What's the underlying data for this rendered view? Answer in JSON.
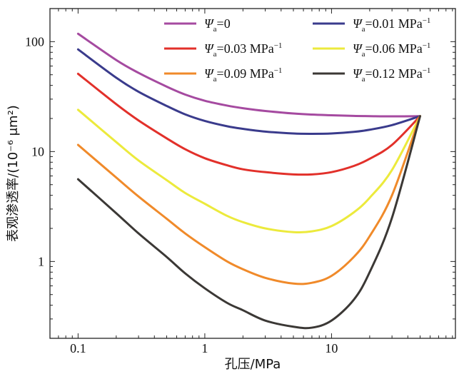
{
  "chart_data": {
    "type": "line",
    "xscale": "log",
    "yscale": "log",
    "xlim": [
      0.06,
      95
    ],
    "ylim": [
      0.2,
      200
    ],
    "xlabel": "孔压/MPa",
    "ylabel": "表观渗透率/(10⁻⁶ μm²)",
    "x_ticks": [
      {
        "value": 0.1,
        "label": "0.1"
      },
      {
        "value": 1,
        "label": "1"
      },
      {
        "value": 10,
        "label": "10"
      }
    ],
    "y_ticks": [
      {
        "value": 1,
        "label": "1"
      },
      {
        "value": 10,
        "label": "10"
      },
      {
        "value": 100,
        "label": "100"
      }
    ],
    "legend_position": "top-right",
    "series": [
      {
        "name": "Ψa=0",
        "symbol": "Ψ",
        "sub": "a",
        "value": "=0",
        "unit": "",
        "unit_sup": "",
        "color": "#a54aa0",
        "x": [
          0.1,
          0.2,
          0.3,
          0.5,
          0.7,
          1,
          1.5,
          2,
          3,
          5,
          7,
          10,
          15,
          20,
          30,
          50
        ],
        "y": [
          118,
          68,
          52,
          39,
          33,
          29,
          26.2,
          24.8,
          23.4,
          22.2,
          21.7,
          21.4,
          21.1,
          21.0,
          20.9,
          21
        ]
      },
      {
        "name": "Ψa=0.01 MPa⁻¹",
        "symbol": "Ψ",
        "sub": "a",
        "value": "=0.01 ",
        "unit": "MPa",
        "unit_sup": "−1",
        "color": "#3a3b8c",
        "x": [
          0.1,
          0.2,
          0.3,
          0.5,
          0.7,
          1,
          1.5,
          2,
          3,
          5,
          7,
          10,
          15,
          20,
          30,
          50
        ],
        "y": [
          85,
          47,
          35,
          26,
          21.8,
          19,
          17,
          16.1,
          15.2,
          14.6,
          14.5,
          14.6,
          15.1,
          15.8,
          17.4,
          21
        ]
      },
      {
        "name": "Ψa=0.03 MPa⁻¹",
        "symbol": "Ψ",
        "sub": "a",
        "value": "=0.03 ",
        "unit": "MPa",
        "unit_sup": "−1",
        "color": "#e2302a",
        "x": [
          0.1,
          0.2,
          0.3,
          0.5,
          0.7,
          1,
          1.5,
          2,
          3,
          5,
          7,
          10,
          15,
          20,
          30,
          50
        ],
        "y": [
          51,
          27,
          19.2,
          13.2,
          10.5,
          8.7,
          7.5,
          6.9,
          6.5,
          6.2,
          6.2,
          6.5,
          7.4,
          8.6,
          11.5,
          21
        ]
      },
      {
        "name": "Ψa=0.06 MPa⁻¹",
        "symbol": "Ψ",
        "sub": "a",
        "value": "=0.06 ",
        "unit": "MPa",
        "unit_sup": "−1",
        "color": "#ecea3c",
        "x": [
          0.1,
          0.2,
          0.3,
          0.5,
          0.7,
          1,
          1.5,
          2,
          3,
          5,
          7,
          10,
          15,
          20,
          30,
          50
        ],
        "y": [
          24,
          12.2,
          8.3,
          5.5,
          4.2,
          3.35,
          2.6,
          2.28,
          2.0,
          1.85,
          1.88,
          2.1,
          2.8,
          3.8,
          6.8,
          21
        ]
      },
      {
        "name": "Ψa=0.09 MPa⁻¹",
        "symbol": "Ψ",
        "sub": "a",
        "value": "=0.09 ",
        "unit": "MPa",
        "unit_sup": "−1",
        "color": "#f08a2a",
        "x": [
          0.1,
          0.2,
          0.3,
          0.5,
          0.7,
          1,
          1.5,
          2,
          3,
          5,
          7,
          10,
          15,
          20,
          30,
          50
        ],
        "y": [
          11.5,
          5.8,
          3.9,
          2.45,
          1.8,
          1.35,
          1.0,
          0.85,
          0.71,
          0.63,
          0.64,
          0.74,
          1.1,
          1.7,
          4.0,
          21
        ]
      },
      {
        "name": "Ψa=0.12 MPa⁻¹",
        "symbol": "Ψ",
        "sub": "a",
        "value": "=0.12 ",
        "unit": "MPa",
        "unit_sup": "−1",
        "color": "#3b3835",
        "x": [
          0.1,
          0.2,
          0.3,
          0.5,
          0.7,
          1,
          1.5,
          2,
          3,
          5,
          7,
          10,
          15,
          20,
          30,
          50
        ],
        "y": [
          5.6,
          2.75,
          1.8,
          1.1,
          0.78,
          0.57,
          0.42,
          0.36,
          0.29,
          0.255,
          0.25,
          0.29,
          0.45,
          0.8,
          2.5,
          21
        ]
      }
    ]
  }
}
